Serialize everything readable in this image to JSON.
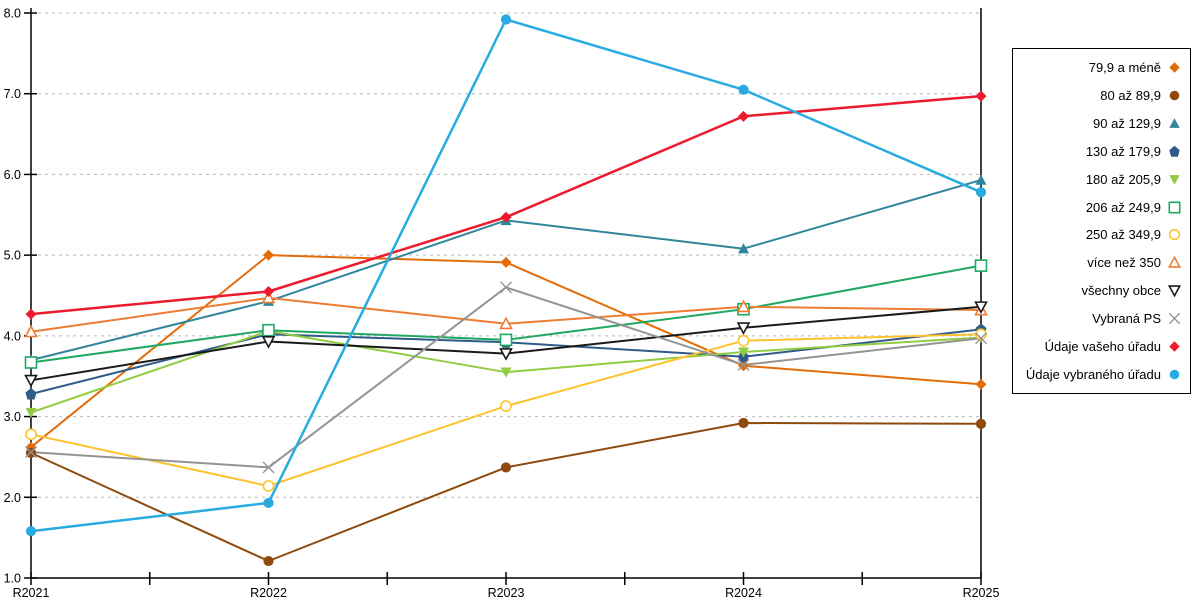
{
  "chart_data": {
    "type": "line",
    "title": "",
    "xlabel": "",
    "ylabel": "",
    "x_categories": [
      "R2021",
      "R2022",
      "R2023",
      "R2024",
      "R2025"
    ],
    "ylim": [
      1.0,
      8.0
    ],
    "y_ticks": [
      "1.0",
      "2.0",
      "3.0",
      "4.0",
      "5.0",
      "6.0",
      "7.0",
      "8.0"
    ],
    "grid": "horizontal dashed gridlines at each 1.0 step",
    "grid_color": "#b8b8b8",
    "axis_color": "#000000",
    "legend_position": "right",
    "series": [
      {
        "name": "79,9 a méně",
        "color": "#e36c0a",
        "marker": "diamond",
        "marker_filled": true,
        "values": [
          2.62,
          5.0,
          4.91,
          3.63,
          3.4
        ]
      },
      {
        "name": "80 až 89,9",
        "color": "#8e4a0d",
        "marker": "circle",
        "marker_filled": true,
        "values": [
          2.55,
          1.21,
          2.37,
          2.92,
          2.91
        ]
      },
      {
        "name": "90 až 129,9",
        "color": "#31859c",
        "marker": "triangle-up",
        "marker_filled": true,
        "values": [
          3.7,
          4.43,
          5.43,
          5.08,
          5.93
        ]
      },
      {
        "name": "130 až 179,9",
        "color": "#2e5b88",
        "marker": "pentagon",
        "marker_filled": true,
        "values": [
          3.28,
          4.02,
          3.92,
          3.74,
          4.08
        ]
      },
      {
        "name": "180 až 205,9",
        "color": "#92cc43",
        "marker": "triangle-down",
        "marker_filled": true,
        "values": [
          3.05,
          4.06,
          3.55,
          3.8,
          3.98
        ]
      },
      {
        "name": "206 až 249,9",
        "color": "#1fa860",
        "marker": "square",
        "marker_filled": false,
        "values": [
          3.67,
          4.07,
          3.95,
          4.33,
          4.87
        ]
      },
      {
        "name": "250 až 349,9",
        "color": "#fdc32e",
        "marker": "circle",
        "marker_filled": false,
        "values": [
          2.78,
          2.14,
          3.13,
          3.94,
          4.02
        ]
      },
      {
        "name": "více než 350",
        "color": "#ed7d31",
        "marker": "triangle-up",
        "marker_filled": false,
        "values": [
          4.05,
          4.47,
          4.15,
          4.36,
          4.32
        ]
      },
      {
        "name": "všechny obce",
        "color": "#1a1a1a",
        "marker": "triangle-down",
        "marker_filled": false,
        "values": [
          3.45,
          3.93,
          3.78,
          4.1,
          4.36
        ]
      },
      {
        "name": "Vybraná PS",
        "color": "#949494",
        "marker": "x",
        "marker_filled": false,
        "values": [
          2.56,
          2.37,
          4.6,
          3.64,
          3.97
        ]
      },
      {
        "name": "Údaje vašeho úřadu",
        "color": "#ec1b2e",
        "marker": "diamond",
        "marker_filled": true,
        "values": [
          4.27,
          4.55,
          5.47,
          6.72,
          6.97
        ]
      },
      {
        "name": "Údaje vybraného úřadu",
        "color": "#29abe2",
        "marker": "circle",
        "marker_filled": true,
        "values": [
          1.58,
          1.93,
          7.92,
          7.05,
          5.78
        ]
      }
    ]
  }
}
